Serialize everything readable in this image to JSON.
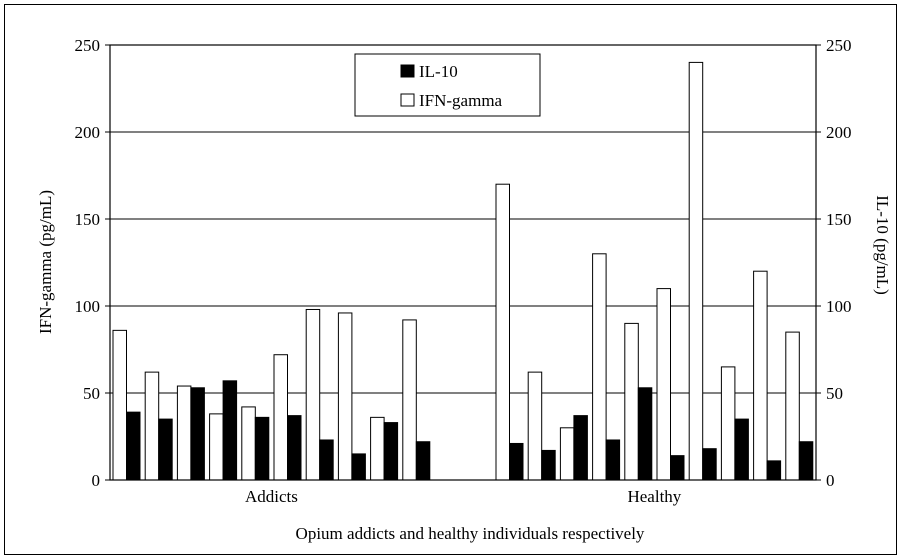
{
  "chart_data": {
    "type": "bar",
    "title": "",
    "xlabel": "Opium addicts and healthy individuals respectively",
    "ylabel_left": "IFN-gamma (pg/mL)",
    "ylabel_right": "IL-10 (pg/mL)",
    "ylim": [
      0,
      250
    ],
    "yticks": [
      "0",
      "50",
      "100",
      "150",
      "200",
      "250"
    ],
    "grid": true,
    "legend_position": "top-center",
    "groups": [
      {
        "label": "Addicts",
        "ifn_gamma": [
          86,
          62,
          54,
          38,
          42,
          72,
          98,
          96,
          36,
          92
        ],
        "il_10": [
          39,
          35,
          53,
          57,
          36,
          37,
          23,
          15,
          33,
          22
        ]
      },
      {
        "label": "Healthy",
        "ifn_gamma": [
          170,
          62,
          30,
          130,
          90,
          110,
          240,
          65,
          120,
          85
        ],
        "il_10": [
          21,
          17,
          37,
          23,
          53,
          14,
          18,
          35,
          11,
          22
        ]
      }
    ],
    "series": [
      {
        "name": "IL-10",
        "color": "#000000"
      },
      {
        "name": "IFN-gamma",
        "color": "#ffffff"
      }
    ]
  }
}
